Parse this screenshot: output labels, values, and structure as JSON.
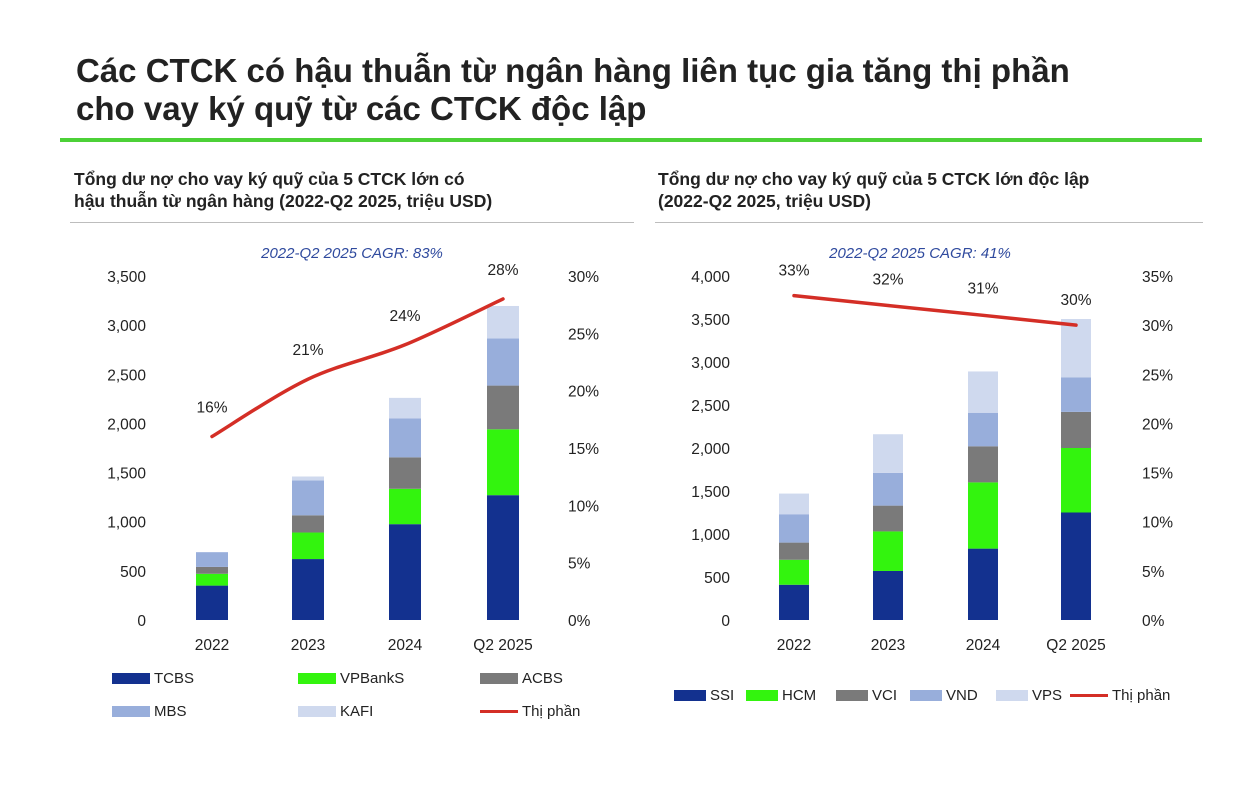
{
  "header": {
    "title_line1": "Các CTCK có hậu thuẫn từ ngân hàng liên tục gia tăng thị phần",
    "title_line2": "cho vay ký quỹ từ các CTCK độc lập",
    "rule_color": "#4cd137"
  },
  "chart_data": [
    {
      "type": "bar",
      "stacked": true,
      "title_line1": "Tổng dư nợ cho vay ký quỹ của 5 CTCK lớn có",
      "title_line2": "hậu thuẫn từ ngân hàng (2022-Q2 2025, triệu USD)",
      "annotation": "2022-Q2 2025 CAGR: 83%",
      "categories": [
        "2022",
        "2023",
        "2024",
        "Q2 2025"
      ],
      "series": [
        {
          "name": "TCBS",
          "color": "#13318f",
          "values": [
            350,
            620,
            975,
            1270
          ]
        },
        {
          "name": "VPBankS",
          "color": "#33f40e",
          "values": [
            120,
            270,
            360,
            670
          ]
        },
        {
          "name": "ACBS",
          "color": "#7a7a7a",
          "values": [
            70,
            175,
            320,
            445
          ]
        },
        {
          "name": "MBS",
          "color": "#98aedb",
          "values": [
            150,
            355,
            395,
            480
          ]
        },
        {
          "name": "KAFI",
          "color": "#cfd9ee",
          "values": [
            0,
            40,
            210,
            330
          ]
        }
      ],
      "line": {
        "name": "Thị phần",
        "color": "#d42e26",
        "values": [
          0.16,
          0.21,
          0.24,
          0.28
        ],
        "labels": [
          "16%",
          "21%",
          "24%",
          "28%"
        ]
      },
      "ylim": [
        0,
        3500
      ],
      "y2lim": [
        0,
        0.3
      ],
      "yticks": [
        "0",
        "500",
        "1,000",
        "1,500",
        "2,000",
        "2,500",
        "3,000",
        "3,500"
      ],
      "y2ticks": [
        "0%",
        "5%",
        "10%",
        "15%",
        "20%",
        "25%",
        "30%"
      ],
      "legend_position": "bottom",
      "grid": false
    },
    {
      "type": "bar",
      "stacked": true,
      "title_line1": "Tổng dư nợ cho vay ký quỹ của 5 CTCK lớn độc lập",
      "title_line2": "(2022-Q2 2025, triệu USD)",
      "annotation": "2022-Q2 2025 CAGR: 41%",
      "categories": [
        "2022",
        "2023",
        "2024",
        "Q2 2025"
      ],
      "series": [
        {
          "name": "SSI",
          "color": "#13318f",
          "values": [
            410,
            570,
            830,
            1250
          ]
        },
        {
          "name": "HCM",
          "color": "#33f40e",
          "values": [
            290,
            460,
            770,
            750
          ]
        },
        {
          "name": "VCI",
          "color": "#7a7a7a",
          "values": [
            200,
            300,
            420,
            420
          ]
        },
        {
          "name": "VND",
          "color": "#98aedb",
          "values": [
            330,
            380,
            390,
            400
          ]
        },
        {
          "name": "VPS",
          "color": "#cfd9ee",
          "values": [
            240,
            450,
            480,
            680
          ]
        }
      ],
      "line": {
        "name": "Thị phần",
        "color": "#d42e26",
        "values": [
          0.33,
          0.32,
          0.31,
          0.3
        ],
        "labels": [
          "33%",
          "32%",
          "31%",
          "30%"
        ]
      },
      "ylim": [
        0,
        4000
      ],
      "y2lim": [
        0,
        0.35
      ],
      "yticks": [
        "0",
        "500",
        "1,000",
        "1,500",
        "2,000",
        "2,500",
        "3,000",
        "3,500",
        "4,000"
      ],
      "y2ticks": [
        "0%",
        "5%",
        "10%",
        "15%",
        "20%",
        "25%",
        "30%",
        "35%"
      ],
      "legend_position": "bottom",
      "grid": false
    }
  ]
}
